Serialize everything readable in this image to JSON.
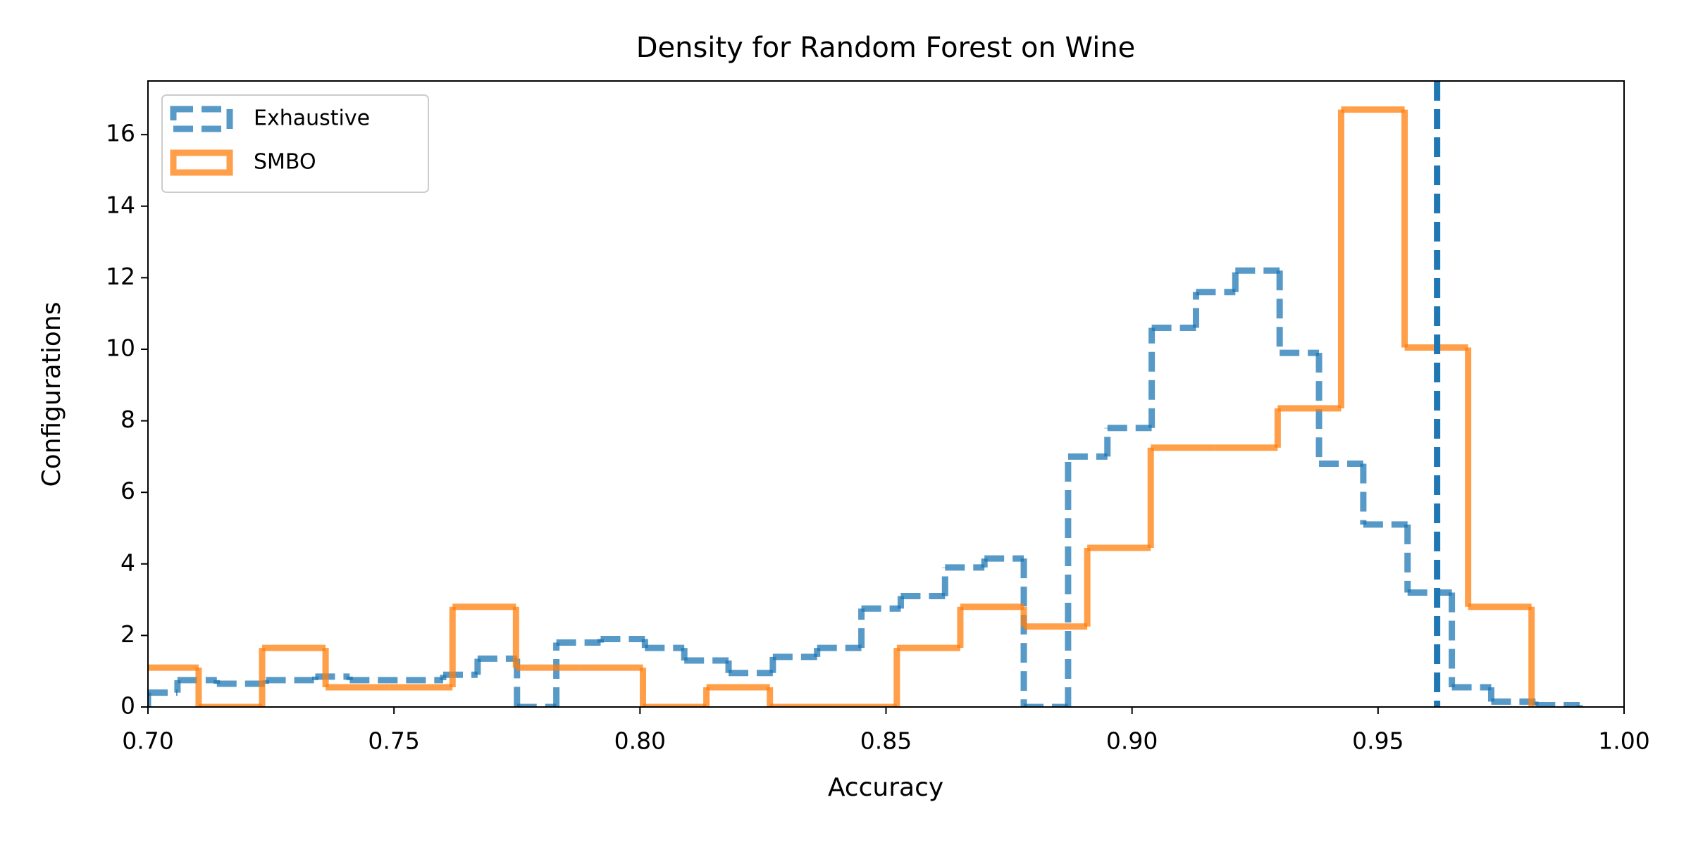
{
  "chart_data": {
    "type": "histogram",
    "title": "Density for Random Forest on Wine",
    "xlabel": "Accuracy",
    "ylabel": "Configurations",
    "xlim": [
      0.7,
      1.0
    ],
    "ylim": [
      0,
      17.5
    ],
    "xticks": [
      {
        "value": 0.7,
        "label": "0.70"
      },
      {
        "value": 0.75,
        "label": "0.75"
      },
      {
        "value": 0.8,
        "label": "0.80"
      },
      {
        "value": 0.85,
        "label": "0.85"
      },
      {
        "value": 0.9,
        "label": "0.90"
      },
      {
        "value": 0.95,
        "label": "0.95"
      },
      {
        "value": 1.0,
        "label": "1.00"
      }
    ],
    "yticks": [
      0,
      2,
      4,
      6,
      8,
      10,
      12,
      14,
      16
    ],
    "legend": "upper left",
    "series": [
      {
        "name": "Exhaustive",
        "color": "#1f77b4",
        "linestyle": "dashed",
        "bins": [
          0.7,
          0.706,
          0.714,
          0.724,
          0.734,
          0.741,
          0.76,
          0.767,
          0.775,
          0.783,
          0.792,
          0.801,
          0.809,
          0.818,
          0.827,
          0.836,
          0.845,
          0.853,
          0.862,
          0.87,
          0.878,
          0.887,
          0.895,
          0.904,
          0.913,
          0.921,
          0.93,
          0.938,
          0.947,
          0.956,
          0.965,
          0.973,
          0.982,
          0.991
        ],
        "values": [
          0.4,
          0.75,
          0.65,
          0.75,
          0.85,
          0.75,
          0.9,
          1.35,
          0,
          1.8,
          1.9,
          1.65,
          1.3,
          0.95,
          1.4,
          1.65,
          2.75,
          3.1,
          3.9,
          4.15,
          0,
          7.0,
          7.8,
          10.6,
          11.6,
          12.2,
          9.9,
          6.8,
          5.1,
          3.2,
          0.55,
          0.15,
          0.05
        ]
      },
      {
        "name": "SMBO",
        "color": "#ff7f0e",
        "linestyle": "solid",
        "bins": [
          0.6974,
          0.7103,
          0.7232,
          0.7361,
          0.749,
          0.7619,
          0.7748,
          0.7877,
          0.8006,
          0.8135,
          0.8264,
          0.8393,
          0.8522,
          0.8651,
          0.878,
          0.8909,
          0.9038,
          0.9167,
          0.9296,
          0.9425,
          0.9554,
          0.9683,
          0.9812
        ],
        "values": [
          1.1,
          0,
          1.65,
          0.55,
          0.55,
          2.8,
          1.1,
          1.1,
          0,
          0.55,
          0,
          0,
          1.65,
          2.8,
          2.25,
          4.45,
          7.25,
          7.25,
          8.35,
          16.7,
          10.05,
          2.8
        ]
      }
    ],
    "vline": {
      "x": 0.962,
      "color": "#1f77b4"
    }
  }
}
